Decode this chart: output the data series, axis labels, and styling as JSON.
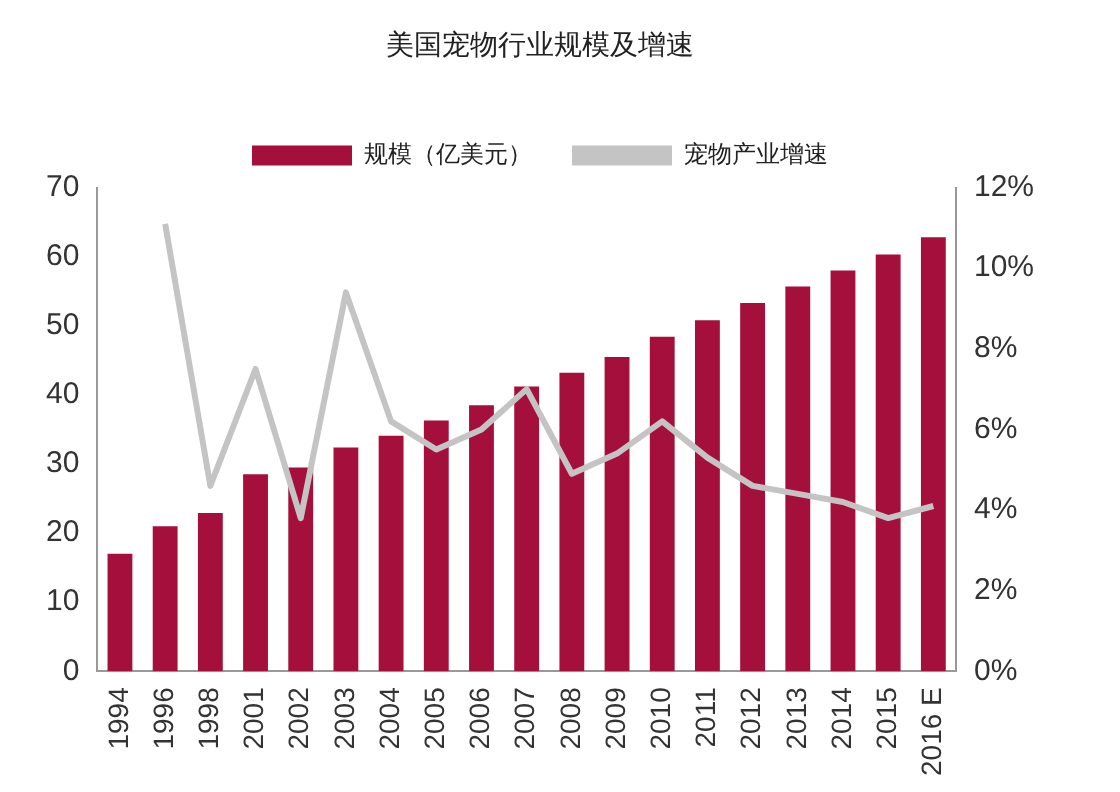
{
  "chart_data": {
    "type": "bar",
    "title": "美国宠物行业规模及增速",
    "categories": [
      "1994",
      "1996",
      "1998",
      "2001",
      "2002",
      "2003",
      "2004",
      "2005",
      "2006",
      "2007",
      "2008",
      "2009",
      "2010",
      "2011",
      "2012",
      "2013",
      "2014",
      "2015",
      "2016 E"
    ],
    "series": [
      {
        "name": "规模（亿美元）",
        "color": "#a50f3b",
        "values": [
          17,
          21,
          22.9,
          28.5,
          29.5,
          32.4,
          34.1,
          36.3,
          38.5,
          41.2,
          43.2,
          45.5,
          48.4,
          50.8,
          53.3,
          55.7,
          58,
          60.3,
          62.8
        ]
      },
      {
        "name": "宠物产业增速",
        "type": "line",
        "axis": "y2",
        "color": "#c4c4c4",
        "values": [
          null,
          11.1,
          4.6,
          7.5,
          3.8,
          9.4,
          6.2,
          5.5,
          6.0,
          7.0,
          4.9,
          5.4,
          6.2,
          5.3,
          4.6,
          4.4,
          4.2,
          3.8,
          4.1
        ]
      }
    ],
    "ylim": [
      0,
      70
    ],
    "yticks": [
      0,
      10,
      20,
      30,
      40,
      50,
      60,
      70
    ],
    "y2lim": [
      0,
      12
    ],
    "y2ticks": [
      {
        "value": 0,
        "label": "0%"
      },
      {
        "value": 2,
        "label": "2%"
      },
      {
        "value": 4,
        "label": "4%"
      },
      {
        "value": 6,
        "label": "6%"
      },
      {
        "value": 8,
        "label": "8%"
      },
      {
        "value": 10,
        "label": "10%"
      },
      {
        "value": 12,
        "label": "12%"
      }
    ],
    "grid": false,
    "legend": "top",
    "marker": "none"
  }
}
